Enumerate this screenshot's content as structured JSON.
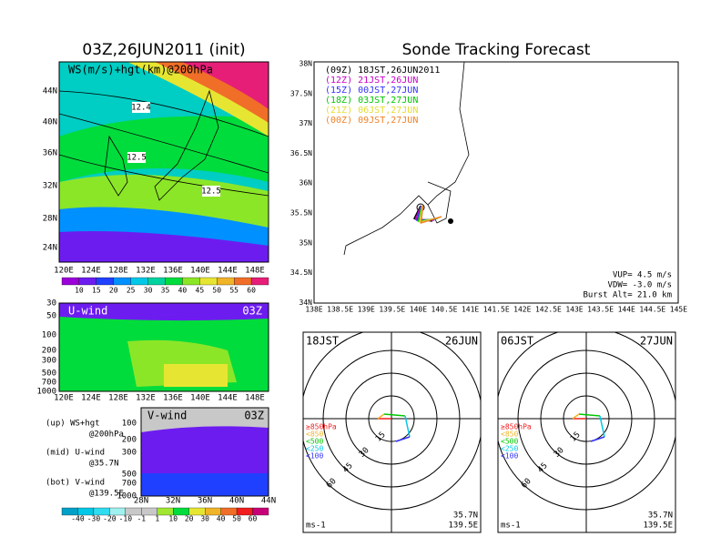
{
  "wind_map": {
    "title": "03Z,26JUN2011 (init)",
    "overlay": "WS(m/s)+hgt(km)@200hPa",
    "contour_labels": [
      "12.4",
      "12.5",
      "12.5"
    ],
    "yticks": [
      "44N",
      "40N",
      "36N",
      "32N",
      "28N",
      "24N"
    ],
    "xticks": [
      "120E",
      "124E",
      "128E",
      "132E",
      "136E",
      "140E",
      "144E",
      "148E"
    ],
    "colorbar": {
      "labels": [
        10,
        15,
        20,
        25,
        30,
        35,
        40,
        45,
        50,
        55,
        60
      ],
      "colors": [
        "#9b00d8",
        "#6d1cf0",
        "#2040ff",
        "#0090ff",
        "#00c8e6",
        "#00d2a0",
        "#00dc3c",
        "#8ce628",
        "#e6e632",
        "#f0b428",
        "#f06e28",
        "#e61e78"
      ]
    }
  },
  "u_wind": {
    "label": "U-wind",
    "time": "03Z",
    "yticks": [
      30,
      50,
      100,
      200,
      300,
      500,
      700,
      1000
    ],
    "xticks": [
      "120E",
      "124E",
      "128E",
      "132E",
      "136E",
      "140E",
      "144E",
      "148E"
    ]
  },
  "v_wind": {
    "label": "V-wind",
    "time": "03Z",
    "yticks": [
      100,
      200,
      300,
      500,
      700,
      1000
    ],
    "xticks": [
      "28N",
      "32N",
      "36N",
      "40N",
      "44N"
    ]
  },
  "notes": [
    "(up) WS+hgt",
    "@200hPa",
    "(mid) U-wind",
    "@35.7N",
    "(bot) V-wind",
    "@139.5E"
  ],
  "v_colorbar": {
    "labels": [
      -40,
      -30,
      -20,
      -10,
      -1,
      1,
      10,
      20,
      30,
      40,
      50,
      60
    ],
    "colors": [
      "#00a0c8",
      "#00c8e6",
      "#30dcf0",
      "#a0f0f0",
      "#c8c8c8",
      "#c8c8c8",
      "#a0e632",
      "#00dc3c",
      "#e6e632",
      "#f0b428",
      "#f06e28",
      "#f01e1e",
      "#c80078"
    ]
  },
  "tracking": {
    "title": "Sonde Tracking Forecast",
    "legend": [
      {
        "text": "(09Z) 18JST,26JUN2011",
        "color": "#000000"
      },
      {
        "text": "(12Z) 21JST,26JUN",
        "color": "#c800c8"
      },
      {
        "text": "(15Z) 00JST,27JUN",
        "color": "#3232ff"
      },
      {
        "text": "(18Z) 03JST,27JUN",
        "color": "#00c800"
      },
      {
        "text": "(21Z) 06JST,27JUN",
        "color": "#e6dc32"
      },
      {
        "text": "(00Z) 09JST,27JUN",
        "color": "#f08228"
      }
    ],
    "yticks": [
      "38N",
      "37.5N",
      "37N",
      "36.5N",
      "36N",
      "35.5N",
      "35N",
      "34.5N",
      "34N"
    ],
    "xticks": [
      "138E",
      "138.5E",
      "139E",
      "139.5E",
      "140E",
      "140.5E",
      "141E",
      "141.5E",
      "142E",
      "142.5E",
      "143E",
      "143.5E",
      "144E",
      "144.5E",
      "145E"
    ],
    "params": [
      "VUP= 4.5 m/s",
      "VDW= -3.0 m/s",
      "Burst Alt= 21.0 km"
    ]
  },
  "hodographs": [
    {
      "time": "18JST",
      "date": "26JUN",
      "ring_labels": [
        15,
        30,
        45,
        60
      ],
      "levels": [
        "≥850hPa",
        "<850",
        "<500",
        "<250",
        "<100"
      ],
      "units": "ms-1",
      "lat": "35.7N",
      "lon": "139.5E"
    },
    {
      "time": "06JST",
      "date": "27JUN",
      "ring_labels": [
        15,
        30,
        45,
        60
      ],
      "levels": [
        "≥850hPa",
        "<850",
        "<500",
        "<250",
        "<100"
      ],
      "units": "ms-1",
      "lat": "35.7N",
      "lon": "139.5E"
    }
  ]
}
